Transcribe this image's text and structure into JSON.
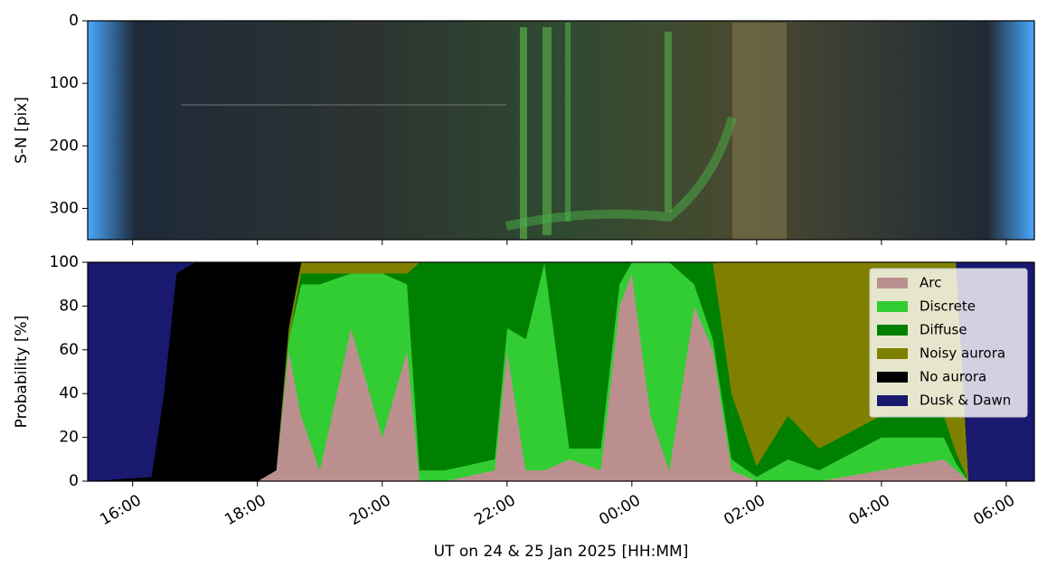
{
  "chart_data": [
    {
      "type": "image",
      "ylabel": "S-N [pix]",
      "ylim": [
        350,
        0
      ],
      "yticks": [
        0,
        100,
        200,
        300
      ],
      "xlim": [
        15.28,
        30.45
      ],
      "xticks": [
        {
          "value": 16,
          "label": "16:00"
        },
        {
          "value": 18,
          "label": "18:00"
        },
        {
          "value": 20,
          "label": "20:00"
        },
        {
          "value": 22,
          "label": "22:00"
        },
        {
          "value": 24,
          "label": "00:00"
        },
        {
          "value": 26,
          "label": "02:00"
        },
        {
          "value": 28,
          "label": "04:00"
        },
        {
          "value": 30,
          "label": "06:00"
        }
      ]
    },
    {
      "type": "stackedarea",
      "ylabel": "Probability [%]",
      "xlabel": "UT on 24 & 25 Jan 2025 [HH:MM]",
      "ylim": [
        0,
        100
      ],
      "yticks": [
        0,
        20,
        40,
        60,
        80,
        100
      ],
      "xlim": [
        15.28,
        30.45
      ],
      "xticks": [
        {
          "value": 16,
          "label": "16:00"
        },
        {
          "value": 18,
          "label": "18:00"
        },
        {
          "value": 20,
          "label": "20:00"
        },
        {
          "value": 22,
          "label": "22:00"
        },
        {
          "value": 24,
          "label": "00:00"
        },
        {
          "value": 26,
          "label": "02:00"
        },
        {
          "value": 28,
          "label": "04:00"
        },
        {
          "value": 30,
          "label": "06:00"
        }
      ],
      "legend": "upper right",
      "x": [
        15.28,
        16.3,
        16.5,
        16.7,
        17.0,
        18.0,
        18.3,
        18.5,
        18.7,
        19.0,
        19.5,
        20.0,
        20.4,
        20.6,
        21.0,
        21.8,
        22.0,
        22.3,
        22.6,
        23.0,
        23.5,
        23.8,
        24.0,
        24.3,
        24.6,
        25.0,
        25.3,
        25.6,
        26.0,
        26.5,
        27.0,
        28.0,
        29.0,
        29.2,
        29.4,
        30.45
      ],
      "series": [
        {
          "name": "Arc",
          "color": "#bc8f8f",
          "values": [
            0,
            0,
            0,
            0,
            0,
            0,
            5,
            60,
            30,
            5,
            70,
            20,
            60,
            0,
            0,
            5,
            60,
            5,
            5,
            10,
            5,
            80,
            95,
            30,
            5,
            80,
            60,
            5,
            0,
            0,
            0,
            5,
            10,
            5,
            0,
            0
          ]
        },
        {
          "name": "Discrete",
          "color": "#32cd32",
          "values": [
            0,
            0,
            0,
            0,
            0,
            0,
            0,
            5,
            60,
            85,
            25,
            75,
            30,
            5,
            5,
            5,
            10,
            60,
            95,
            5,
            10,
            10,
            5,
            70,
            95,
            10,
            5,
            5,
            2,
            10,
            5,
            15,
            10,
            3,
            0,
            0
          ]
        },
        {
          "name": "Diffuse",
          "color": "#008000",
          "values": [
            0,
            0,
            0,
            0,
            0,
            0,
            0,
            0,
            5,
            5,
            0,
            0,
            5,
            95,
            95,
            90,
            30,
            35,
            0,
            85,
            85,
            10,
            0,
            0,
            0,
            10,
            35,
            30,
            5,
            20,
            10,
            10,
            10,
            5,
            0,
            0
          ]
        },
        {
          "name": "Noisy aurora",
          "color": "#808000",
          "values": [
            0,
            0,
            0,
            0,
            0,
            0,
            0,
            5,
            5,
            5,
            5,
            5,
            5,
            0,
            0,
            0,
            0,
            0,
            0,
            0,
            0,
            0,
            0,
            0,
            0,
            0,
            0,
            60,
            93,
            70,
            85,
            70,
            70,
            87,
            0,
            0
          ]
        },
        {
          "name": "No aurora",
          "color": "#000000",
          "values": [
            0,
            2,
            40,
            95,
            100,
            100,
            95,
            30,
            0,
            0,
            0,
            0,
            0,
            0,
            0,
            0,
            0,
            0,
            0,
            0,
            0,
            0,
            0,
            0,
            0,
            0,
            0,
            0,
            0,
            0,
            0,
            0,
            0,
            0,
            0,
            0
          ]
        },
        {
          "name": "Dusk & Dawn",
          "color": "#191970",
          "values": [
            100,
            98,
            60,
            5,
            0,
            0,
            0,
            0,
            0,
            0,
            0,
            0,
            0,
            0,
            0,
            0,
            0,
            0,
            0,
            0,
            0,
            0,
            0,
            0,
            0,
            0,
            0,
            0,
            0,
            0,
            0,
            0,
            0,
            0,
            100,
            100
          ]
        }
      ]
    }
  ]
}
